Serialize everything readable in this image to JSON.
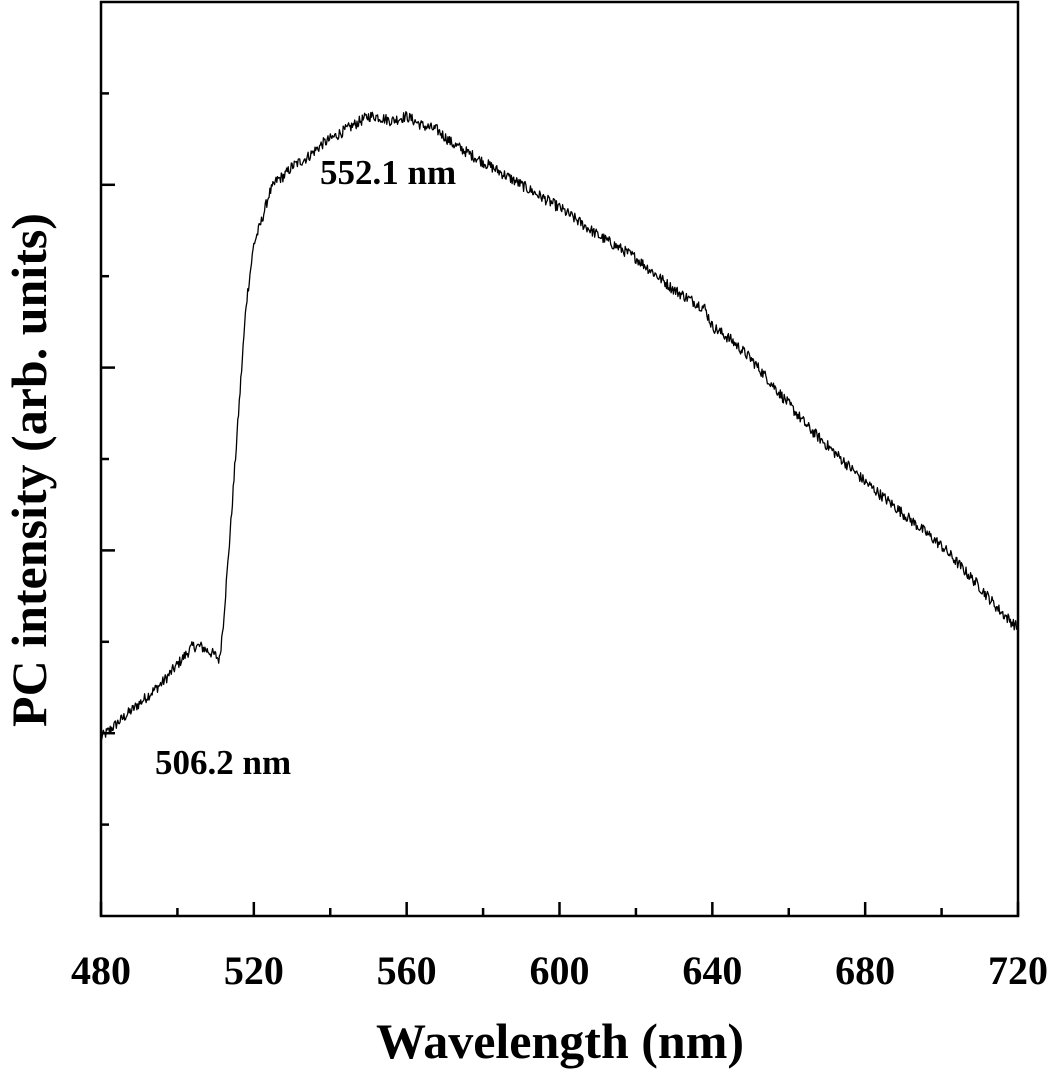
{
  "chart_data": {
    "type": "line",
    "xlabel": "Wavelength (nm)",
    "ylabel": "PC intensity (arb. units)",
    "xlim": [
      480,
      720
    ],
    "x_ticks": [
      480,
      520,
      560,
      600,
      640,
      680,
      720
    ],
    "x_tick_labels": [
      "480",
      "520",
      "560",
      "600",
      "640",
      "680",
      "720"
    ],
    "x_minor_step": 20,
    "ylim": [
      0,
      10
    ],
    "y_ticks": [
      1,
      2,
      3,
      4,
      5,
      6,
      7,
      8,
      9
    ],
    "y_tick_labels_shown": false,
    "grid": false,
    "line_color": "#000000",
    "series": [
      {
        "x": [
          480,
          484,
          488,
          492,
          496,
          500,
          504,
          506,
          508,
          510,
          511,
          512,
          514,
          516,
          518,
          520,
          522,
          524,
          526,
          528,
          530,
          534,
          538,
          542,
          546,
          550,
          552,
          556,
          560,
          564,
          568,
          572,
          576,
          580,
          590,
          600,
          610,
          620,
          630,
          638,
          640,
          645,
          650,
          655,
          660,
          665,
          670,
          675,
          680,
          690,
          700,
          710,
          715,
          720
        ],
        "y": [
          1.95,
          2.1,
          2.25,
          2.4,
          2.55,
          2.75,
          2.95,
          2.95,
          2.9,
          2.85,
          2.8,
          3.2,
          4.3,
          5.5,
          6.7,
          7.35,
          7.6,
          7.9,
          8.05,
          8.1,
          8.2,
          8.3,
          8.45,
          8.55,
          8.65,
          8.75,
          8.75,
          8.7,
          8.75,
          8.65,
          8.6,
          8.45,
          8.35,
          8.25,
          8.0,
          7.75,
          7.45,
          7.2,
          6.85,
          6.65,
          6.45,
          6.3,
          6.1,
          5.85,
          5.6,
          5.35,
          5.15,
          4.95,
          4.75,
          4.4,
          4.05,
          3.6,
          3.35,
          3.15
        ]
      }
    ],
    "annotations": [
      {
        "text": "552.1 nm",
        "x": 552.1,
        "y": 9.5
      },
      {
        "text": "506.2 nm",
        "x": 506.2,
        "y": 1.6
      }
    ]
  }
}
